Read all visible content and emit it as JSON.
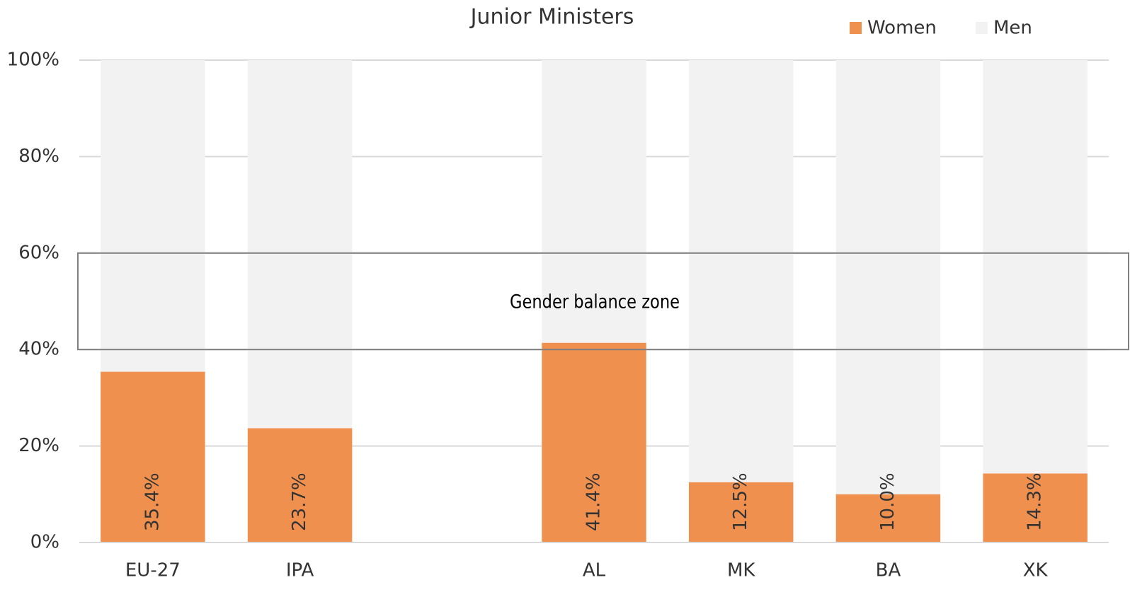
{
  "chart_data": {
    "type": "stacked_bar",
    "title": "Junior Ministers",
    "categories": [
      "EU-27",
      "IPA",
      null,
      "AL",
      "MK",
      "BA",
      "XK"
    ],
    "series": [
      {
        "name": "Women",
        "color": "#f0904e",
        "values": [
          35.4,
          23.7,
          null,
          41.4,
          12.5,
          10.0,
          14.3
        ],
        "value_labels": [
          "35.4%",
          "23.7%",
          null,
          "41.4%",
          "12.5%",
          "10.0%",
          "14.3%"
        ]
      },
      {
        "name": "Men",
        "color": "#f2f2f2",
        "values": [
          64.6,
          76.3,
          null,
          58.6,
          87.5,
          90.0,
          85.7
        ]
      }
    ],
    "ylim": [
      0,
      100
    ],
    "yticks": [
      {
        "value": 0,
        "label": "0%"
      },
      {
        "value": 20,
        "label": "20%"
      },
      {
        "value": 40,
        "label": "40%"
      },
      {
        "value": 60,
        "label": "60%"
      },
      {
        "value": 80,
        "label": "80%"
      },
      {
        "value": 100,
        "label": "100%"
      }
    ],
    "grid": true,
    "legend": "top-right",
    "annotation": {
      "text": "Gender balance zone",
      "range": [
        40,
        60
      ]
    }
  }
}
